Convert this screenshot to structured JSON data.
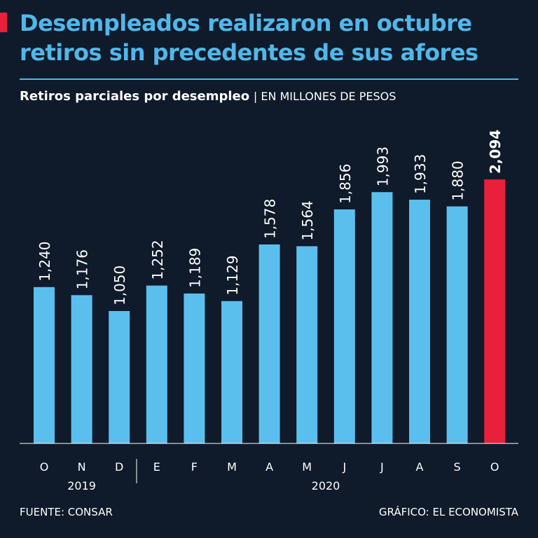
{
  "header": {
    "title": "Desempleados realizaron en octubre retiros sin precedentes de sus afores",
    "subtitle_main": "Retiros parciales por desempleo",
    "subtitle_unit": "| EN MILLONES DE PESOS"
  },
  "footer": {
    "source": "FUENTE: CONSAR",
    "credit": "GRÁFICO: EL ECONOMISTA"
  },
  "colors": {
    "bar": "#5bbfee",
    "highlight": "#e8203a",
    "title": "#4fb8ea",
    "background": "#0f1a2a"
  },
  "chart_data": {
    "type": "bar",
    "title": "Retiros parciales por desempleo",
    "ylabel": "EN MILLONES DE PESOS",
    "categories": [
      "O",
      "N",
      "D",
      "E",
      "F",
      "M",
      "A",
      "M",
      "J",
      "J",
      "A",
      "S",
      "O"
    ],
    "values": [
      1240,
      1176,
      1050,
      1252,
      1189,
      1129,
      1578,
      1564,
      1856,
      1993,
      1933,
      1880,
      2094
    ],
    "value_labels": [
      "1,240",
      "1,176",
      "1,050",
      "1,252",
      "1,189",
      "1,129",
      "1,578",
      "1,564",
      "1,856",
      "1,993",
      "1,933",
      "1,880",
      "2,094"
    ],
    "highlight_index": 12,
    "year_groups": [
      {
        "label": "2019",
        "from": 0,
        "to": 2
      },
      {
        "label": "2020",
        "from": 3,
        "to": 12
      }
    ],
    "ylim": [
      0,
      2200
    ],
    "grid": false,
    "legend": "none"
  }
}
